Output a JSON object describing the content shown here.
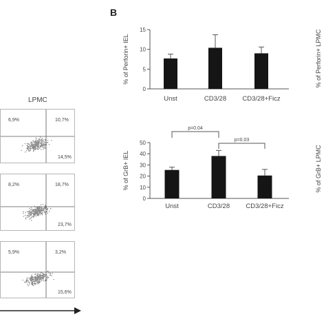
{
  "panel_b_letter": "B",
  "lpmc_title": "LPMC",
  "right_edge_labels": [
    "% of Perforin+ LPMC",
    "% of GrB+ LPMC"
  ],
  "flow_panels": [
    {
      "ul": "6,9%",
      "ur": "10,7%",
      "lr": "14,5%"
    },
    {
      "ul": "8,2%",
      "ur": "18,7%",
      "lr": "23,7%"
    },
    {
      "ul": "5,9%",
      "ur": "3,2%",
      "lr": "15,6%"
    }
  ],
  "chart_data": [
    {
      "type": "bar",
      "categories": [
        "Unst",
        "CD3/28",
        "CD3/28+Ficz"
      ],
      "values": [
        7.7,
        10.4,
        9.0
      ],
      "errors": [
        1.1,
        3.3,
        1.6
      ],
      "ylabel": "% of Perforin+ IEL",
      "ylim": [
        0,
        15
      ],
      "yticks": [
        0,
        5,
        10,
        15
      ],
      "pvalues": []
    },
    {
      "type": "bar",
      "categories": [
        "Unst",
        "CD3/28",
        "CD3/28+Ficz"
      ],
      "values": [
        25.5,
        38.0,
        20.5
      ],
      "errors": [
        2.5,
        5.0,
        5.5
      ],
      "ylabel": "% of GrB+ IEL",
      "ylim": [
        0,
        50
      ],
      "yticks": [
        0,
        10,
        20,
        30,
        40,
        50
      ],
      "pvalues": [
        {
          "from": 0,
          "to": 1,
          "label": "p=0.04"
        },
        {
          "from": 1,
          "to": 2,
          "label": "p=0.03"
        }
      ]
    }
  ],
  "colors": {
    "bar": "#151515",
    "axis": "#555555",
    "text": "#444444",
    "dots": "#8a8a8a",
    "frame": "#b5b5b5"
  }
}
